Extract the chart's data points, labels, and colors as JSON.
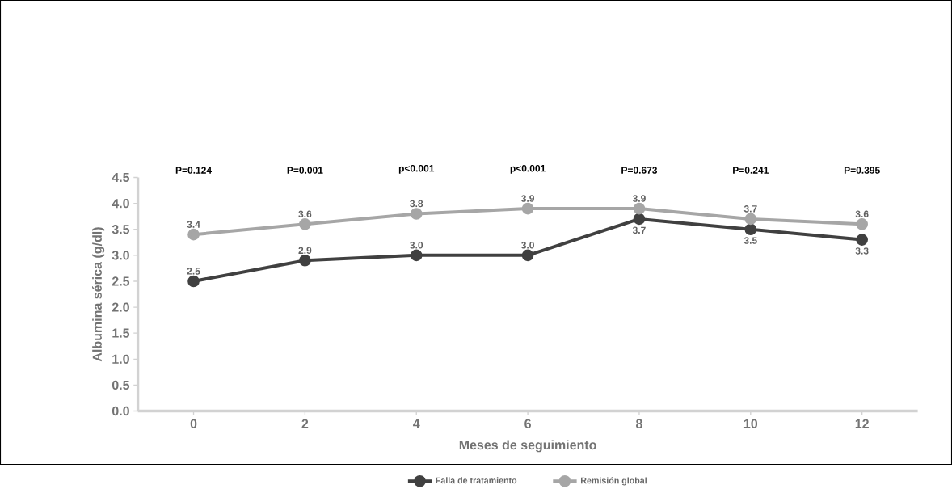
{
  "chart_data": {
    "type": "line",
    "xlabel": "Meses de seguimiento",
    "ylabel": "Albumina sérica (g/dl)",
    "categories": [
      "0",
      "2",
      "4",
      "6",
      "8",
      "10",
      "12"
    ],
    "series": [
      {
        "name": "Falla de tratamiento",
        "color": "#404040",
        "values": [
          2.5,
          2.9,
          3.0,
          3.0,
          3.7,
          3.5,
          3.3
        ],
        "value_labels": [
          "2.5",
          "2.9",
          "3.0",
          "3.0",
          "3.7",
          "3.5",
          "3.3"
        ]
      },
      {
        "name": "Remisión global",
        "color": "#a6a6a6",
        "values": [
          3.4,
          3.6,
          3.8,
          3.9,
          3.9,
          3.7,
          3.6
        ],
        "value_labels": [
          "3.4",
          "3.6",
          "3.8",
          "3.9",
          "3.9",
          "3.7",
          "3.6"
        ]
      }
    ],
    "ylim": [
      0,
      4.5
    ],
    "yticks": [
      {
        "value": 0,
        "label": "0.0"
      },
      0.5,
      {
        "value": 1,
        "label": "1.0"
      },
      1.5,
      {
        "value": 2,
        "label": "2.0"
      },
      2.5,
      {
        "value": 3,
        "label": "3.0"
      },
      3.5,
      {
        "value": 4,
        "label": "4.0"
      },
      4.5
    ],
    "marker": "circle",
    "line_style": "solid",
    "legend": "bottom",
    "annotations": [
      "P=0.124",
      "P=0.001",
      "p<0.001",
      "p<0.001",
      "P=0.673",
      "P=0.241",
      "P=0.395"
    ]
  }
}
